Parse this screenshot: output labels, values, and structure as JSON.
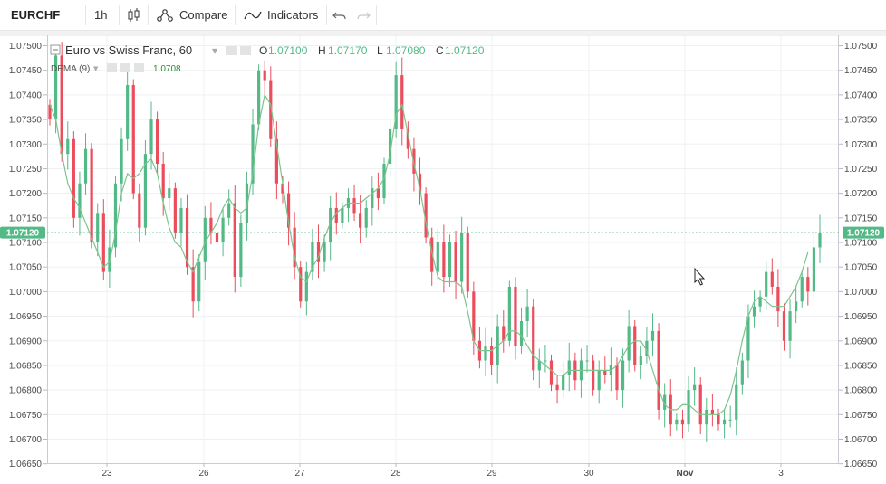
{
  "toolbar": {
    "symbol": "EURCHF",
    "interval": "1h",
    "compare_label": "Compare",
    "indicators_label": "Indicators"
  },
  "legend": {
    "title": "Euro vs Swiss Franc, 60",
    "open_label": "O",
    "open": "1.07100",
    "high_label": "H",
    "high": "1.07170",
    "low_label": "L",
    "low": "1.07080",
    "close_label": "C",
    "close": "1.07120",
    "indicator_name": "DEMA (9)",
    "indicator_value": "1.0708"
  },
  "price_tag": "1.07120",
  "colors": {
    "up": "#53b987",
    "down": "#eb4d5c",
    "dema": "#7cc38c",
    "price_line": "#53b987",
    "grid": "#eef0f3"
  },
  "chart_data": {
    "type": "candlestick",
    "title": "Euro vs Swiss Franc, 60",
    "y_tick_labels": [
      "1.06650",
      "1.06700",
      "1.06750",
      "1.06800",
      "1.06850",
      "1.06900",
      "1.06950",
      "1.07000",
      "1.07050",
      "1.07100",
      "1.07150",
      "1.07200",
      "1.07250",
      "1.07300",
      "1.07350",
      "1.07400",
      "1.07450",
      "1.07500"
    ],
    "x_tick_labels": [
      "23",
      "26",
      "27",
      "28",
      "29",
      "30",
      "Nov",
      "3"
    ],
    "ylim": [
      1.0665,
      1.0752
    ],
    "last_close": 1.0712,
    "close_series": [
      1.0735,
      1.0748,
      1.0728,
      1.0731,
      1.0715,
      1.0722,
      1.0729,
      1.071,
      1.0716,
      1.0704,
      1.0709,
      1.0722,
      1.0731,
      1.0742,
      1.072,
      1.0713,
      1.0728,
      1.0735,
      1.0726,
      1.0719,
      1.0721,
      1.0712,
      1.0717,
      1.0705,
      1.0698,
      1.0706,
      1.0715,
      1.0712,
      1.071,
      1.0715,
      1.0718,
      1.0703,
      1.0714,
      1.0722,
      1.0734,
      1.0745,
      1.0743,
      1.0731,
      1.0722,
      1.072,
      1.0713,
      1.0705,
      1.0698,
      1.0704,
      1.071,
      1.0706,
      1.071,
      1.0717,
      1.0714,
      1.0717,
      1.0719,
      1.0716,
      1.0713,
      1.0717,
      1.0721,
      1.0719,
      1.0726,
      1.0733,
      1.0744,
      1.0733,
      1.0729,
      1.0724,
      1.072,
      1.0711,
      1.0704,
      1.071,
      1.0703,
      1.071,
      1.0702,
      1.0712,
      1.07,
      1.069,
      1.0686,
      1.0689,
      1.0685,
      1.0693,
      1.069,
      1.0701,
      1.0689,
      1.0694,
      1.0697,
      1.0684,
      1.0686,
      1.0686,
      1.0681,
      1.068,
      1.0683,
      1.0686,
      1.0682,
      1.0686,
      1.0686,
      1.068,
      1.0684,
      1.0683,
      1.0685,
      1.068,
      1.0686,
      1.0693,
      1.0685,
      1.0687,
      1.069,
      1.0692,
      1.0676,
      1.0679,
      1.0673,
      1.0674,
      1.0673,
      1.068,
      1.0681,
      1.0673,
      1.0676,
      1.0675,
      1.0673,
      1.0674,
      1.0674,
      1.0681,
      1.0686,
      1.0695,
      1.0697,
      1.0699,
      1.0704,
      1.0701,
      1.0696,
      1.069,
      1.0696,
      1.0698,
      1.0703,
      1.07,
      1.0709,
      1.0712
    ],
    "dema_series": [
      1.0738,
      1.0735,
      1.0728,
      1.0722,
      1.0719,
      1.0717,
      1.0714,
      1.0711,
      1.0708,
      1.0705,
      1.0706,
      1.0712,
      1.072,
      1.0724,
      1.0723,
      1.0724,
      1.0726,
      1.0727,
      1.0724,
      1.0718,
      1.0713,
      1.071,
      1.0709,
      1.0706,
      1.0704,
      1.0707,
      1.071,
      1.0712,
      1.0714,
      1.0717,
      1.0719,
      1.0717,
      1.0716,
      1.0717,
      1.0724,
      1.0734,
      1.074,
      1.0738,
      1.073,
      1.0722,
      1.0714,
      1.0707,
      1.0703,
      1.0702,
      1.0705,
      1.0707,
      1.0711,
      1.0714,
      1.0716,
      1.0717,
      1.0718,
      1.0718,
      1.0718,
      1.0719,
      1.072,
      1.0721,
      1.0723,
      1.0728,
      1.0736,
      1.0738,
      1.0732,
      1.0726,
      1.0721,
      1.0714,
      1.0708,
      1.0703,
      1.0702,
      1.0702,
      1.0702,
      1.0701,
      1.0696,
      1.069,
      1.0688,
      1.0688,
      1.0688,
      1.0689,
      1.069,
      1.0692,
      1.0692,
      1.0691,
      1.0689,
      1.0687,
      1.0686,
      1.0685,
      1.0684,
      1.0683,
      1.0683,
      1.0684,
      1.0684,
      1.0684,
      1.0684,
      1.0684,
      1.0684,
      1.0684,
      1.0684,
      1.0685,
      1.0687,
      1.0689,
      1.069,
      1.069,
      1.0688,
      1.0684,
      1.068,
      1.0677,
      1.0676,
      1.0676,
      1.0677,
      1.0677,
      1.0676,
      1.0675,
      1.0675,
      1.0675,
      1.0675,
      1.0676,
      1.0679,
      1.0684,
      1.069,
      1.0695,
      1.0698,
      1.0699,
      1.0698,
      1.0697,
      1.0697,
      1.0697,
      1.0699,
      1.0701,
      1.0704,
      1.0708
    ]
  }
}
